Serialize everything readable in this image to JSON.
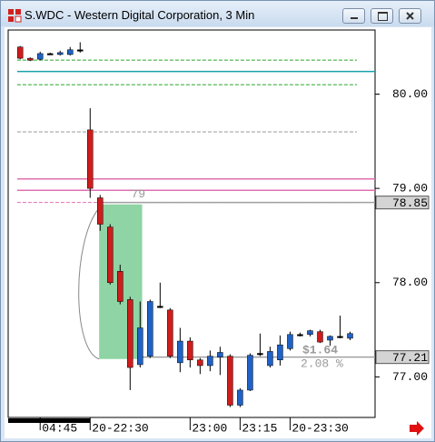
{
  "window": {
    "title": "S.WDC - Western Digital Corporation, 3 Min"
  },
  "chart_data": {
    "type": "candlestick",
    "x": [
      0,
      1,
      2,
      3,
      4,
      5,
      6,
      7,
      8,
      9,
      10,
      11,
      12,
      13,
      14,
      15,
      16,
      17,
      18,
      19,
      20,
      21,
      22,
      23,
      24,
      25,
      26,
      27,
      28,
      29,
      30,
      31,
      32,
      33
    ],
    "open": [
      80.5,
      80.38,
      80.37,
      80.43,
      80.42,
      80.42,
      80.47,
      79.62,
      78.9,
      78.59,
      78.12,
      77.82,
      77.13,
      77.22,
      77.75,
      77.71,
      77.15,
      77.38,
      77.18,
      77.12,
      77.21,
      77.22,
      76.7,
      76.86,
      77.25,
      77.12,
      77.18,
      77.3,
      77.45,
      77.45,
      77.48,
      77.39,
      77.43,
      77.41
    ],
    "high": [
      80.51,
      80.39,
      80.45,
      80.44,
      80.46,
      80.5,
      80.55,
      79.85,
      78.93,
      78.62,
      78.19,
      77.85,
      77.8,
      77.82,
      78.0,
      77.73,
      77.52,
      77.42,
      77.2,
      77.28,
      77.32,
      77.24,
      76.88,
      77.25,
      77.46,
      77.32,
      77.44,
      77.48,
      77.47,
      77.5,
      77.5,
      77.44,
      77.65,
      77.48
    ],
    "low": [
      80.37,
      80.35,
      80.36,
      80.42,
      80.41,
      80.41,
      80.44,
      78.9,
      78.55,
      77.98,
      77.77,
      76.86,
      77.1,
      77.2,
      77.73,
      77.2,
      77.05,
      77.1,
      77.03,
      77.06,
      77.02,
      76.68,
      76.68,
      76.85,
      77.22,
      77.1,
      77.12,
      77.28,
      77.43,
      77.43,
      77.36,
      77.33,
      77.41,
      77.39
    ],
    "close": [
      80.38,
      80.36,
      80.43,
      80.43,
      80.44,
      80.47,
      80.47,
      79.0,
      78.62,
      78.0,
      77.8,
      77.1,
      77.52,
      77.8,
      77.75,
      77.22,
      77.38,
      77.18,
      77.12,
      77.22,
      77.26,
      76.7,
      76.86,
      77.23,
      77.25,
      77.27,
      77.34,
      77.45,
      77.45,
      77.49,
      77.37,
      77.43,
      77.43,
      77.46
    ],
    "up_color": "#1f62c8",
    "down_color": "#d01c1c",
    "flat_color": "#000000",
    "xlim": [
      -1.2,
      35.5
    ],
    "ylim": [
      76.57,
      80.68
    ],
    "yticks": [
      {
        "value": 80,
        "label": "80.00"
      },
      {
        "value": 79,
        "label": "79.00"
      },
      {
        "value": 78,
        "label": "78.00"
      },
      {
        "value": 77,
        "label": "77.00"
      }
    ],
    "xticks": [
      {
        "value": 2,
        "label": "04:45"
      },
      {
        "value": 7,
        "label": "20-22:30"
      },
      {
        "value": 17,
        "label": "23:00"
      },
      {
        "value": 22,
        "label": "23:15"
      },
      {
        "value": 27,
        "label": "20-23:30"
      }
    ],
    "levels": [
      {
        "value": 80.36,
        "color": "#2aa52a",
        "dashed": true,
        "x_start": -0.3
      },
      {
        "value": 80.24,
        "color": "#1aa0a8",
        "dashed": false,
        "x_start": -0.3
      },
      {
        "value": 80.1,
        "color": "#2aa52a",
        "dashed": true,
        "x_start": -0.3
      },
      {
        "value": 79.6,
        "color": "#999999",
        "dashed": true,
        "x_start": -0.3
      },
      {
        "value": 79.1,
        "color": "#e070b0",
        "dashed": false,
        "x_start": -0.3
      },
      {
        "value": 78.98,
        "color": "#e070b0",
        "dashed": false,
        "x_start": -0.3
      },
      {
        "value": 78.85,
        "color": "#e070b0",
        "dashed": true,
        "x_start": -0.3
      },
      {
        "value": 78.85,
        "color": "#a0a0a0",
        "dashed": false,
        "x_start": 7.9
      },
      {
        "value": 77.21,
        "color": "#a0a0a0",
        "dashed": false,
        "x_start": 11.5
      }
    ],
    "highlight": {
      "x_range": [
        7.9,
        12.2
      ],
      "y_range": [
        77.19,
        78.83
      ],
      "color": "#8fd4a4"
    },
    "price_markers": [
      78.85,
      77.21
    ],
    "annotations": [
      "79",
      "$1.64",
      "2.08 %"
    ]
  }
}
